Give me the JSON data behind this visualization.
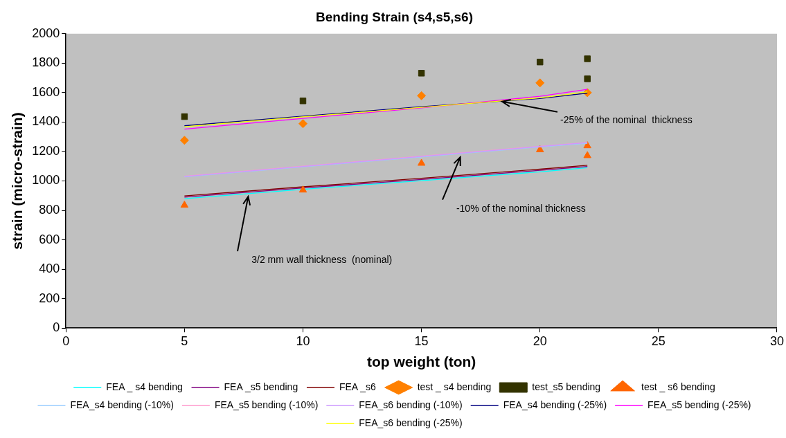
{
  "chart_data": {
    "type": "scatter",
    "title": "Bending Strain (s4,s5,s6)",
    "xlabel": "top weight (ton)",
    "ylabel": "strain (micro-strain)",
    "xlim": [
      0,
      30
    ],
    "xticks": [
      0,
      5,
      10,
      15,
      20,
      25,
      30
    ],
    "ylim": [
      0,
      2000
    ],
    "yticks": [
      0,
      200,
      400,
      600,
      800,
      1000,
      1200,
      1400,
      1600,
      1800,
      2000
    ],
    "grid": false,
    "legend": "bottom",
    "series": [
      {
        "name": "FEA _ s4 bending",
        "type": "line",
        "marker": "none",
        "color": "#00ffff",
        "x": [
          5,
          10,
          15,
          20,
          22
        ],
        "values": [
          880,
          943,
          1002,
          1062,
          1090
        ]
      },
      {
        "name": "FEA _s5 bending",
        "type": "line",
        "marker": "none",
        "color": "#800080",
        "x": [
          5,
          10,
          15,
          20,
          22
        ],
        "values": [
          890,
          952,
          1010,
          1072,
          1098
        ]
      },
      {
        "name": "FEA _s6",
        "type": "line",
        "marker": "none",
        "color": "#800000",
        "x": [
          5,
          10,
          15,
          20,
          22
        ],
        "values": [
          898,
          960,
          1018,
          1080,
          1106
        ]
      },
      {
        "name": "test _ s4 bending",
        "type": "scatter",
        "marker": "diamond",
        "color": "#ff8000",
        "x": [
          5,
          10,
          15,
          20,
          22
        ],
        "values": [
          1276,
          1389,
          1579,
          1666,
          1600
        ]
      },
      {
        "name": "test_s5 bending",
        "type": "scatter",
        "marker": "square",
        "color": "#333300",
        "x": [
          5,
          10,
          15,
          20,
          22,
          22
        ],
        "values": [
          1437,
          1544,
          1732,
          1808,
          1830,
          1694
        ]
      },
      {
        "name": "test _ s6 bending",
        "type": "scatter",
        "marker": "triangle",
        "color": "#ff6600",
        "x": [
          5,
          10,
          15,
          20,
          22,
          22
        ],
        "values": [
          835,
          938,
          1120,
          1212,
          1239,
          1172
        ]
      },
      {
        "name": "FEA_s4 bending (-10%)",
        "type": "line",
        "marker": "none",
        "color": "#99ccff",
        "x": [
          5,
          10,
          15,
          20,
          22
        ],
        "values": [
          1028,
          1096,
          1163,
          1231,
          1256
        ]
      },
      {
        "name": "FEA_s5 bending (-10%)",
        "type": "line",
        "marker": "none",
        "color": "#ff99cc",
        "x": [
          5,
          10,
          15,
          20,
          22
        ],
        "values": [
          1032,
          1100,
          1168,
          1236,
          1262
        ]
      },
      {
        "name": "FEA_s6 bending (-10%)",
        "type": "line",
        "marker": "none",
        "color": "#cc99ff",
        "x": [
          5,
          10,
          15,
          20,
          22
        ],
        "values": [
          1030,
          1098,
          1166,
          1234,
          1260
        ]
      },
      {
        "name": "FEA_s4 bending (-25%)",
        "type": "line",
        "marker": "none",
        "color": "#000080",
        "x": [
          5,
          10,
          15,
          20,
          22
        ],
        "values": [
          1375,
          1440,
          1505,
          1560,
          1597
        ]
      },
      {
        "name": "FEA_s5 bending (-25%)",
        "type": "line",
        "marker": "none",
        "color": "#ff00ff",
        "x": [
          5,
          10,
          15,
          20,
          22
        ],
        "values": [
          1352,
          1425,
          1497,
          1575,
          1622
        ]
      },
      {
        "name": "FEA_s6 bending (-25%)",
        "type": "line",
        "marker": "none",
        "color": "#ffff00",
        "x": [
          5,
          10,
          15,
          20,
          22
        ],
        "values": [
          1368,
          1435,
          1500,
          1565,
          1605
        ]
      }
    ],
    "annotations": [
      "3/2 mm wall thickness  (nominal)",
      "-10% of the nominal thickness",
      {
        "text": "-25% of the nominal  thickness",
        "x": 18.4,
        "y": 1540
      }
    ]
  }
}
